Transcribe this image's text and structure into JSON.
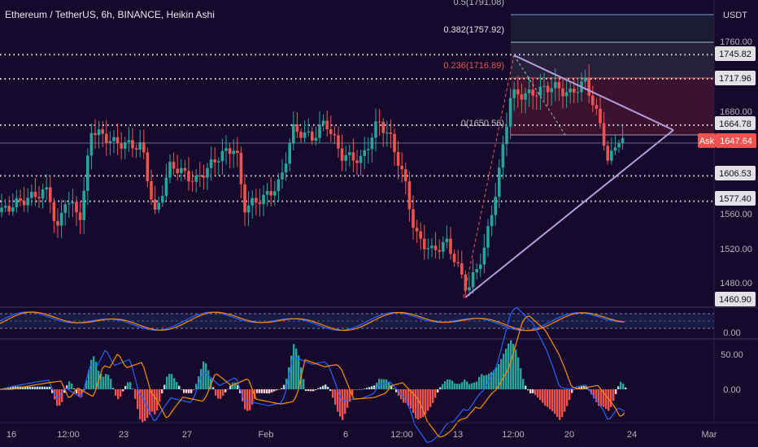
{
  "chart_data": {
    "type": "candlestick",
    "title": "Ethereum / TetherUS, 6h, BINANCE, Heikin Ashi",
    "currency": "USDT",
    "price_axis_ticks": [
      "1760.00",
      "1680.00",
      "1560.00",
      "1520.00",
      "1480.00"
    ],
    "ylim": [
      1440,
      1800
    ],
    "date_labels": [
      "16",
      "12:00",
      "23",
      "27",
      "Feb",
      "6",
      "12:00",
      "13",
      "12:00",
      "20",
      "24",
      "Mar"
    ],
    "ask_label": "Ask",
    "ask_price": 1647.64,
    "price_badges": [
      1745.82,
      1717.96,
      1664.78,
      1606.53,
      1577.4,
      1460.9
    ],
    "badge_texts": [
      "1745.82",
      "1717.96",
      "1664.78",
      "1606.53",
      "1577.40",
      "1460.90"
    ],
    "fib_levels": [
      {
        "label": "0.5(1791.08)",
        "value": 1791.08
      },
      {
        "label": "0.382(1757.92)",
        "value": 1757.92
      },
      {
        "label": "0.236(1716.89)",
        "value": 1716.89
      },
      {
        "label": "0(1650.56)",
        "value": 1650.56
      }
    ],
    "dotted_levels": [
      1745.82,
      1717.96,
      1664.78,
      1606.53,
      1577.4
    ],
    "rsi_axis_label": "0.00",
    "macd_axis_ticks": [
      "50.00",
      "0.00"
    ],
    "colors": {
      "bg": "#150a2b",
      "up": "#26a69a",
      "down": "#ef5350",
      "grid": "#2a1f45",
      "triangle": "#b39ddb",
      "fib_red": "#ef5350",
      "text": "#d1d4dc",
      "axis_bg": "#150a2b"
    }
  }
}
